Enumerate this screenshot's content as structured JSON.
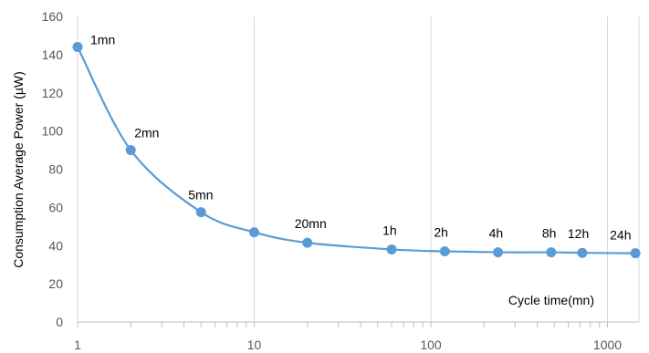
{
  "chart_data": {
    "type": "line",
    "xscale": "log",
    "xlabel": "Cycle time(mn)",
    "ylabel": "Consumption Average Power  (µW)",
    "xlim": [
      1,
      1600
    ],
    "ylim": [
      0,
      160
    ],
    "x_ticks": [
      1,
      10,
      100,
      1000
    ],
    "x_tick_labels": [
      "1",
      "10",
      "100",
      "1000"
    ],
    "y_ticks": [
      0,
      20,
      40,
      60,
      80,
      100,
      120,
      140,
      160
    ],
    "y_tick_labels": [
      "0",
      "20",
      "40",
      "60",
      "80",
      "100",
      "120",
      "140",
      "160"
    ],
    "grid": "vertical major lines only",
    "series_color": "#5B9BD5",
    "points": [
      {
        "x": 1,
        "y": 144,
        "label": "1mn"
      },
      {
        "x": 2,
        "y": 90,
        "label": "2mn"
      },
      {
        "x": 5,
        "y": 57.5,
        "label": "5mn"
      },
      {
        "x": 10,
        "y": 47,
        "label": ""
      },
      {
        "x": 20,
        "y": 41.5,
        "label": "20mn"
      },
      {
        "x": 60,
        "y": 38,
        "label": "1h"
      },
      {
        "x": 120,
        "y": 37,
        "label": "2h"
      },
      {
        "x": 240,
        "y": 36.5,
        "label": "4h"
      },
      {
        "x": 480,
        "y": 36.5,
        "label": "8h"
      },
      {
        "x": 720,
        "y": 36.2,
        "label": "12h"
      },
      {
        "x": 1440,
        "y": 36,
        "label": "24h"
      }
    ]
  }
}
